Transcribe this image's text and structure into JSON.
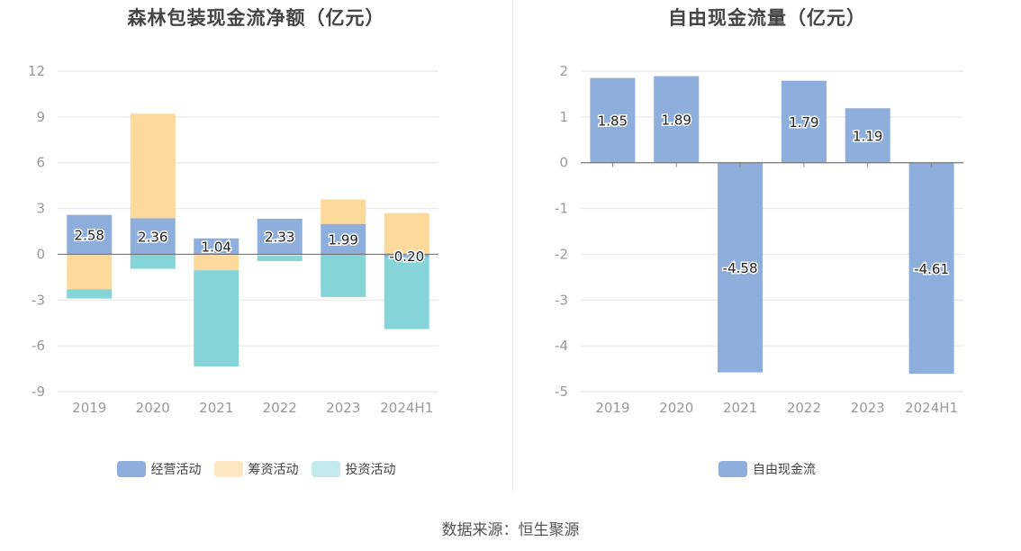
{
  "source_text": "数据来源：恒生聚源",
  "chart_data": [
    {
      "type": "bar",
      "stacked": true,
      "title": "森林包装现金流净额（亿元）",
      "categories": [
        "2019",
        "2020",
        "2021",
        "2022",
        "2023",
        "2024H1"
      ],
      "series": [
        {
          "name": "经营活动",
          "color": "#8eaedb",
          "values": [
            2.58,
            2.36,
            1.04,
            2.33,
            1.99,
            -0.2
          ],
          "labeled": true
        },
        {
          "name": "筹资活动",
          "color": "#fdd99b",
          "values": [
            -2.3,
            6.85,
            -1.05,
            -0.1,
            1.6,
            2.7
          ],
          "labeled": false
        },
        {
          "name": "投资活动",
          "color": "#85d4d8",
          "values": [
            -0.6,
            -0.95,
            -6.3,
            -0.35,
            -2.8,
            -4.7
          ],
          "labeled": false
        }
      ],
      "yticks": [
        12,
        9,
        6,
        3,
        0,
        -3,
        -6,
        -9
      ],
      "ylim": [
        -9,
        12
      ],
      "grid": true,
      "legend": "bottom"
    },
    {
      "type": "bar",
      "title": "自由现金流量（亿元）",
      "categories": [
        "2019",
        "2020",
        "2021",
        "2022",
        "2023",
        "2024H1"
      ],
      "series": [
        {
          "name": "自由现金流",
          "color": "#8eaedb",
          "values": [
            1.85,
            1.89,
            -4.58,
            1.79,
            1.19,
            -4.61
          ],
          "labeled": true
        }
      ],
      "yticks": [
        2,
        1,
        0,
        -1,
        -2,
        -3,
        -4,
        -5
      ],
      "ylim": [
        -5,
        2
      ],
      "grid": true,
      "legend": "bottom"
    }
  ]
}
